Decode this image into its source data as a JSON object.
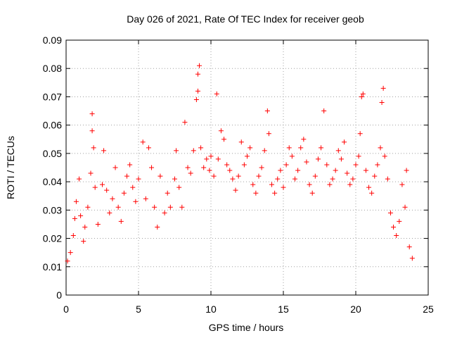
{
  "chart_data": {
    "type": "scatter",
    "title": "Day 026 of 2021, Rate Of TEC Index for receiver geob",
    "xlabel": "GPS time / hours",
    "ylabel": "ROTI / TECUs",
    "xlim": [
      0,
      25
    ],
    "ylim": [
      0,
      0.09
    ],
    "x_ticks": [
      0,
      5,
      10,
      15,
      20,
      25
    ],
    "y_ticks": [
      0,
      0.01,
      0.02,
      0.03,
      0.04,
      0.05,
      0.06,
      0.07,
      0.08,
      0.09
    ],
    "x_tick_labels": [
      "0",
      "5",
      "10",
      "15",
      "20",
      "25"
    ],
    "y_tick_labels": [
      "0",
      "0.01",
      "0.02",
      "0.03",
      "0.04",
      "0.05",
      "0.06",
      "0.07",
      "0.08",
      "0.09"
    ],
    "grid": true,
    "marker": "+",
    "marker_color": "#ff0000",
    "series": [
      {
        "name": "ROTI",
        "points": [
          [
            0.1,
            0.012
          ],
          [
            0.3,
            0.015
          ],
          [
            0.5,
            0.021
          ],
          [
            0.6,
            0.027
          ],
          [
            0.7,
            0.033
          ],
          [
            0.9,
            0.041
          ],
          [
            1.0,
            0.028
          ],
          [
            1.2,
            0.019
          ],
          [
            1.3,
            0.024
          ],
          [
            1.5,
            0.031
          ],
          [
            1.7,
            0.043
          ],
          [
            1.8,
            0.058
          ],
          [
            1.8,
            0.064
          ],
          [
            1.9,
            0.052
          ],
          [
            2.0,
            0.038
          ],
          [
            2.2,
            0.025
          ],
          [
            2.5,
            0.039
          ],
          [
            2.6,
            0.051
          ],
          [
            2.8,
            0.037
          ],
          [
            3.0,
            0.029
          ],
          [
            3.2,
            0.034
          ],
          [
            3.4,
            0.045
          ],
          [
            3.6,
            0.031
          ],
          [
            3.8,
            0.026
          ],
          [
            4.0,
            0.036
          ],
          [
            4.2,
            0.042
          ],
          [
            4.4,
            0.046
          ],
          [
            4.6,
            0.038
          ],
          [
            4.8,
            0.033
          ],
          [
            5.0,
            0.041
          ],
          [
            5.3,
            0.054
          ],
          [
            5.5,
            0.034
          ],
          [
            5.7,
            0.052
          ],
          [
            5.9,
            0.045
          ],
          [
            6.1,
            0.031
          ],
          [
            6.3,
            0.024
          ],
          [
            6.5,
            0.042
          ],
          [
            6.8,
            0.029
          ],
          [
            7.0,
            0.036
          ],
          [
            7.2,
            0.031
          ],
          [
            7.5,
            0.041
          ],
          [
            7.6,
            0.051
          ],
          [
            7.8,
            0.038
          ],
          [
            8.0,
            0.031
          ],
          [
            8.2,
            0.061
          ],
          [
            8.4,
            0.045
          ],
          [
            8.6,
            0.043
          ],
          [
            8.8,
            0.051
          ],
          [
            9.0,
            0.069
          ],
          [
            9.1,
            0.072
          ],
          [
            9.1,
            0.078
          ],
          [
            9.2,
            0.081
          ],
          [
            9.3,
            0.052
          ],
          [
            9.5,
            0.045
          ],
          [
            9.7,
            0.048
          ],
          [
            9.9,
            0.044
          ],
          [
            10.0,
            0.049
          ],
          [
            10.2,
            0.042
          ],
          [
            10.4,
            0.071
          ],
          [
            10.5,
            0.048
          ],
          [
            10.7,
            0.058
          ],
          [
            10.9,
            0.055
          ],
          [
            11.1,
            0.046
          ],
          [
            11.3,
            0.044
          ],
          [
            11.5,
            0.041
          ],
          [
            11.7,
            0.037
          ],
          [
            11.9,
            0.042
          ],
          [
            12.1,
            0.054
          ],
          [
            12.3,
            0.046
          ],
          [
            12.5,
            0.049
          ],
          [
            12.7,
            0.052
          ],
          [
            12.9,
            0.039
          ],
          [
            13.1,
            0.036
          ],
          [
            13.3,
            0.042
          ],
          [
            13.5,
            0.045
          ],
          [
            13.7,
            0.051
          ],
          [
            13.9,
            0.065
          ],
          [
            14.0,
            0.057
          ],
          [
            14.2,
            0.039
          ],
          [
            14.4,
            0.036
          ],
          [
            14.6,
            0.041
          ],
          [
            14.8,
            0.044
          ],
          [
            15.0,
            0.038
          ],
          [
            15.2,
            0.046
          ],
          [
            15.4,
            0.052
          ],
          [
            15.6,
            0.049
          ],
          [
            15.8,
            0.041
          ],
          [
            16.0,
            0.044
          ],
          [
            16.2,
            0.052
          ],
          [
            16.4,
            0.055
          ],
          [
            16.6,
            0.047
          ],
          [
            16.8,
            0.039
          ],
          [
            17.0,
            0.036
          ],
          [
            17.2,
            0.042
          ],
          [
            17.4,
            0.048
          ],
          [
            17.6,
            0.052
          ],
          [
            17.8,
            0.065
          ],
          [
            18.0,
            0.046
          ],
          [
            18.2,
            0.039
          ],
          [
            18.4,
            0.041
          ],
          [
            18.6,
            0.044
          ],
          [
            18.8,
            0.051
          ],
          [
            19.0,
            0.048
          ],
          [
            19.2,
            0.054
          ],
          [
            19.4,
            0.043
          ],
          [
            19.6,
            0.039
          ],
          [
            19.8,
            0.041
          ],
          [
            20.0,
            0.046
          ],
          [
            20.2,
            0.049
          ],
          [
            20.3,
            0.057
          ],
          [
            20.4,
            0.07
          ],
          [
            20.5,
            0.071
          ],
          [
            20.7,
            0.044
          ],
          [
            20.9,
            0.038
          ],
          [
            21.1,
            0.036
          ],
          [
            21.3,
            0.042
          ],
          [
            21.5,
            0.046
          ],
          [
            21.7,
            0.052
          ],
          [
            21.8,
            0.068
          ],
          [
            21.9,
            0.073
          ],
          [
            22.0,
            0.049
          ],
          [
            22.2,
            0.041
          ],
          [
            22.4,
            0.029
          ],
          [
            22.6,
            0.024
          ],
          [
            22.8,
            0.021
          ],
          [
            23.0,
            0.026
          ],
          [
            23.2,
            0.039
          ],
          [
            23.4,
            0.031
          ],
          [
            23.5,
            0.044
          ],
          [
            23.7,
            0.017
          ],
          [
            23.9,
            0.013
          ]
        ]
      }
    ]
  }
}
